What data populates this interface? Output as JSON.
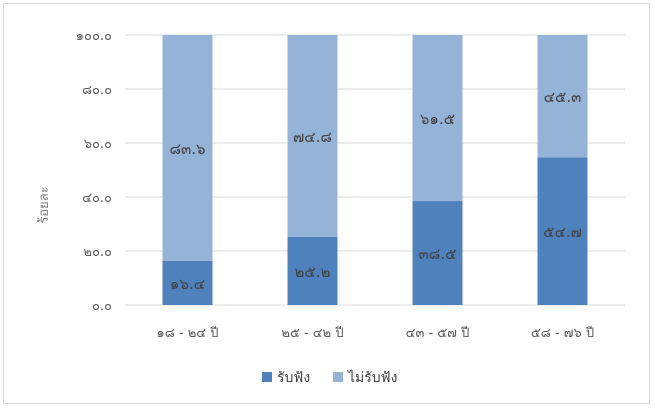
{
  "chart_data": {
    "type": "bar",
    "stacked": true,
    "categories": [
      "๑๘ - ๒๔ ปี",
      "๒๕ - ๔๒ ปี",
      "๔๓ - ๕๗ ปี",
      "๕๘ - ๗๖ ปี"
    ],
    "series": [
      {
        "name": "รับฟัง",
        "color": "#4f81bd",
        "values": [
          16.4,
          25.2,
          38.5,
          54.7
        ],
        "labels": [
          "๑๖.๔",
          "๒๕.๒",
          "๓๘.๕",
          "๕๔.๗"
        ]
      },
      {
        "name": "ไม่รับฟัง",
        "color": "#95b3d7",
        "values": [
          83.6,
          74.8,
          61.5,
          45.3
        ],
        "labels": [
          "๘๓.๖",
          "๗๔.๘",
          "๖๑.๕",
          "๔๕.๓"
        ]
      }
    ],
    "ylabel": "ร้อยละ",
    "xlabel": "",
    "ylim": [
      0,
      100
    ],
    "yticks": [
      0,
      20,
      40,
      60,
      80,
      100
    ],
    "ytick_labels": [
      "๐.๐",
      "๒๐.๐",
      "๔๐.๐",
      "๖๐.๐",
      "๘๐.๐",
      "๑๐๐.๐"
    ],
    "grid": true,
    "legend_position": "bottom"
  }
}
